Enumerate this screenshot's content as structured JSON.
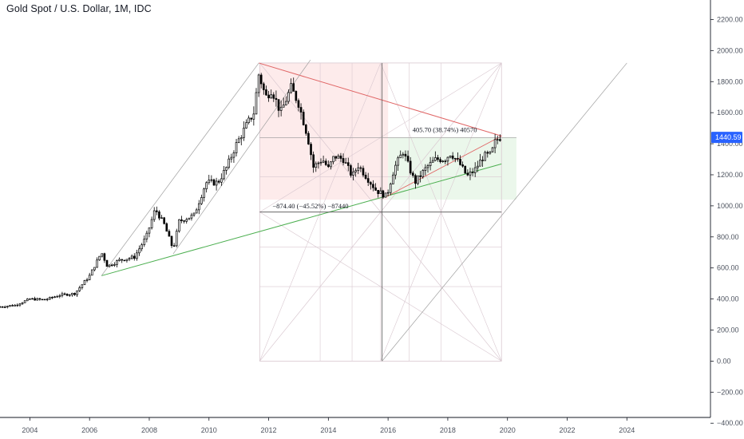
{
  "header": {
    "title": "Gold Spot / U.S. Dollar, 1M, IDC"
  },
  "colors": {
    "bull_body": "#ffffff",
    "bear_body": "#000000",
    "candle_outline": "#000000",
    "price_tag": "#2962ff",
    "resistance_line": "#e06666",
    "support_line": "#4caf50",
    "bear_zone": "#fde8e8",
    "bull_zone": "#e8f6e8",
    "grid_lines": "#d9c8d0"
  },
  "chart_data": {
    "type": "candlestick",
    "title": "Gold Spot / U.S. Dollar, 1M, IDC",
    "interval": "1M",
    "xlim": [
      2003.0,
      2026.8
    ],
    "ylim": [
      -440,
      2300
    ],
    "y_axis_position": "right",
    "grid": false,
    "y_ticks": [
      {
        "value": 2200,
        "label": "2200.00"
      },
      {
        "value": 2000,
        "label": "2000.00"
      },
      {
        "value": 1800,
        "label": "1800.00"
      },
      {
        "value": 1600,
        "label": "1600.00"
      },
      {
        "value": 1400,
        "label": "1400.00"
      },
      {
        "value": 1200,
        "label": "1200.00"
      },
      {
        "value": 1000,
        "label": "1000.00"
      },
      {
        "value": 800,
        "label": "800.00"
      },
      {
        "value": 600,
        "label": "600.00"
      },
      {
        "value": 400,
        "label": "400.00"
      },
      {
        "value": 200,
        "label": "200.00"
      },
      {
        "value": 0,
        "label": "0.00"
      },
      {
        "value": -200,
        "label": "−200.00"
      },
      {
        "value": -400,
        "label": "−400.00"
      }
    ],
    "x_ticks": [
      {
        "value": 2004,
        "label": "2004"
      },
      {
        "value": 2006,
        "label": "2006"
      },
      {
        "value": 2008,
        "label": "2008"
      },
      {
        "value": 2010,
        "label": "2010"
      },
      {
        "value": 2012,
        "label": "2012"
      },
      {
        "value": 2014,
        "label": "2014"
      },
      {
        "value": 2016,
        "label": "2016"
      },
      {
        "value": 2018,
        "label": "2018"
      },
      {
        "value": 2020,
        "label": "2020"
      },
      {
        "value": 2022,
        "label": "2022"
      },
      {
        "value": 2024,
        "label": "2024"
      }
    ],
    "last_price": {
      "value": 1440.59,
      "label": "1440.59"
    },
    "price_path": [
      [
        2003.0,
        350
      ],
      [
        2003.5,
        360
      ],
      [
        2004.0,
        400
      ],
      [
        2004.5,
        395
      ],
      [
        2005.0,
        425
      ],
      [
        2005.5,
        435
      ],
      [
        2006.0,
        550
      ],
      [
        2006.4,
        700
      ],
      [
        2006.6,
        610
      ],
      [
        2007.0,
        650
      ],
      [
        2007.5,
        670
      ],
      [
        2007.9,
        800
      ],
      [
        2008.2,
        980
      ],
      [
        2008.5,
        880
      ],
      [
        2008.8,
        720
      ],
      [
        2009.0,
        900
      ],
      [
        2009.5,
        940
      ],
      [
        2009.9,
        1150
      ],
      [
        2010.3,
        1150
      ],
      [
        2010.6,
        1250
      ],
      [
        2010.9,
        1390
      ],
      [
        2011.2,
        1500
      ],
      [
        2011.5,
        1600
      ],
      [
        2011.67,
        1850
      ],
      [
        2011.9,
        1700
      ],
      [
        2012.1,
        1750
      ],
      [
        2012.4,
        1600
      ],
      [
        2012.75,
        1760
      ],
      [
        2013.0,
        1660
      ],
      [
        2013.3,
        1450
      ],
      [
        2013.5,
        1250
      ],
      [
        2013.8,
        1300
      ],
      [
        2014.0,
        1240
      ],
      [
        2014.2,
        1320
      ],
      [
        2014.5,
        1300
      ],
      [
        2014.8,
        1190
      ],
      [
        2015.0,
        1260
      ],
      [
        2015.3,
        1180
      ],
      [
        2015.6,
        1100
      ],
      [
        2015.95,
        1060
      ],
      [
        2016.2,
        1240
      ],
      [
        2016.5,
        1350
      ],
      [
        2016.9,
        1150
      ],
      [
        2017.3,
        1250
      ],
      [
        2017.6,
        1300
      ],
      [
        2017.9,
        1300
      ],
      [
        2018.1,
        1340
      ],
      [
        2018.4,
        1270
      ],
      [
        2018.65,
        1190
      ],
      [
        2018.9,
        1230
      ],
      [
        2019.2,
        1320
      ],
      [
        2019.45,
        1330
      ],
      [
        2019.6,
        1420
      ],
      [
        2019.75,
        1440.59
      ]
    ],
    "annotations": [
      {
        "text": "405.70 (38.74%) 40570",
        "year": 2017.9,
        "price": 1490
      },
      {
        "text": "−874.40 (−45.52%) −87440",
        "year": 2013.4,
        "price": 1000
      }
    ],
    "drawings": [
      {
        "type": "line",
        "from": [
          2011.67,
          1920
        ],
        "to": [
          2019.8,
          1450
        ]
      },
      {
        "type": "line",
        "from": [
          2006.4,
          550
        ],
        "to": [
          2019.8,
          1270
        ]
      },
      {
        "type": "line",
        "from": [
          2006.4,
          550
        ],
        "to": [
          2011.67,
          1920
        ]
      },
      {
        "type": "line",
        "from": [
          2008.8,
          690
        ],
        "to": [
          2013.4,
          1940
        ]
      },
      {
        "type": "line",
        "from": [
          2015.95,
          1060
        ],
        "to": [
          2019.8,
          1450
        ]
      },
      {
        "type": "hline",
        "from": [
          2011.7,
          960
        ],
        "to": [
          2019.8,
          960
        ]
      },
      {
        "type": "vline",
        "x": 2015.8,
        "from": 0,
        "to": 1920
      },
      {
        "type": "bear_zone",
        "from": [
          2011.7,
          1040
        ],
        "to": [
          2016.0,
          1920
        ]
      },
      {
        "type": "bull_zone",
        "from": [
          2016.0,
          1040
        ],
        "to": [
          2020.3,
          1440
        ]
      },
      {
        "type": "gann_box",
        "from": [
          2011.7,
          0
        ],
        "to": [
          2019.8,
          1920
        ]
      },
      {
        "type": "line",
        "from": [
          2015.8,
          0
        ],
        "to": [
          2024.0,
          1920
        ]
      }
    ]
  }
}
